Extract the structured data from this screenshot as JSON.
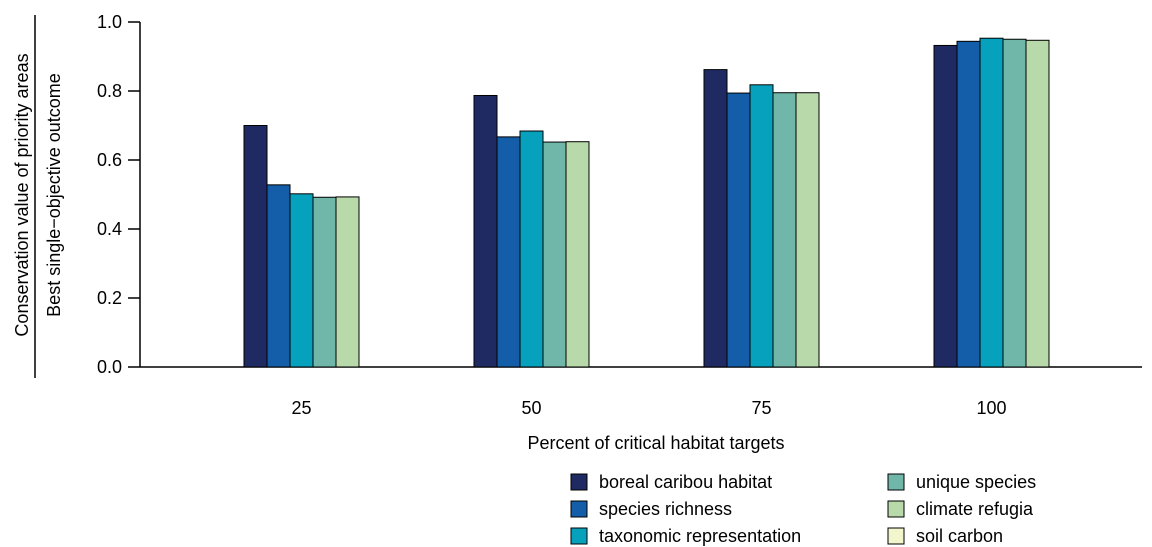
{
  "chart_data": {
    "type": "bar",
    "xlabel": "Percent of critical habitat targets",
    "ylabel_numerator": "Conservation value of priority areas",
    "ylabel_denominator": "Best single−objective outcome",
    "ylim": [
      0,
      1.0
    ],
    "yticks": [
      "0.0",
      "0.2",
      "0.4",
      "0.6",
      "0.8",
      "1.0"
    ],
    "categories": [
      "25",
      "50",
      "75",
      "100"
    ],
    "legend_position": "bottom-right",
    "series": [
      {
        "name": "boreal caribou habitat",
        "color": "#1f2a63",
        "values": [
          0.7,
          0.787,
          0.862,
          0.932
        ]
      },
      {
        "name": "species richness",
        "color": "#145da8",
        "values": [
          0.528,
          0.667,
          0.794,
          0.944
        ]
      },
      {
        "name": "taxonomic representation",
        "color": "#06a2bd",
        "values": [
          0.502,
          0.684,
          0.818,
          0.953
        ]
      },
      {
        "name": "unique species",
        "color": "#70b7aa",
        "values": [
          0.492,
          0.652,
          0.795,
          0.95
        ]
      },
      {
        "name": "climate refugia",
        "color": "#b8d9a9",
        "values": [
          0.493,
          0.653,
          0.795,
          0.947
        ]
      },
      {
        "name": "soil carbon",
        "color": "#f3f6cc",
        "values": [
          0.0,
          0.0,
          0.0,
          0.0
        ]
      }
    ]
  }
}
